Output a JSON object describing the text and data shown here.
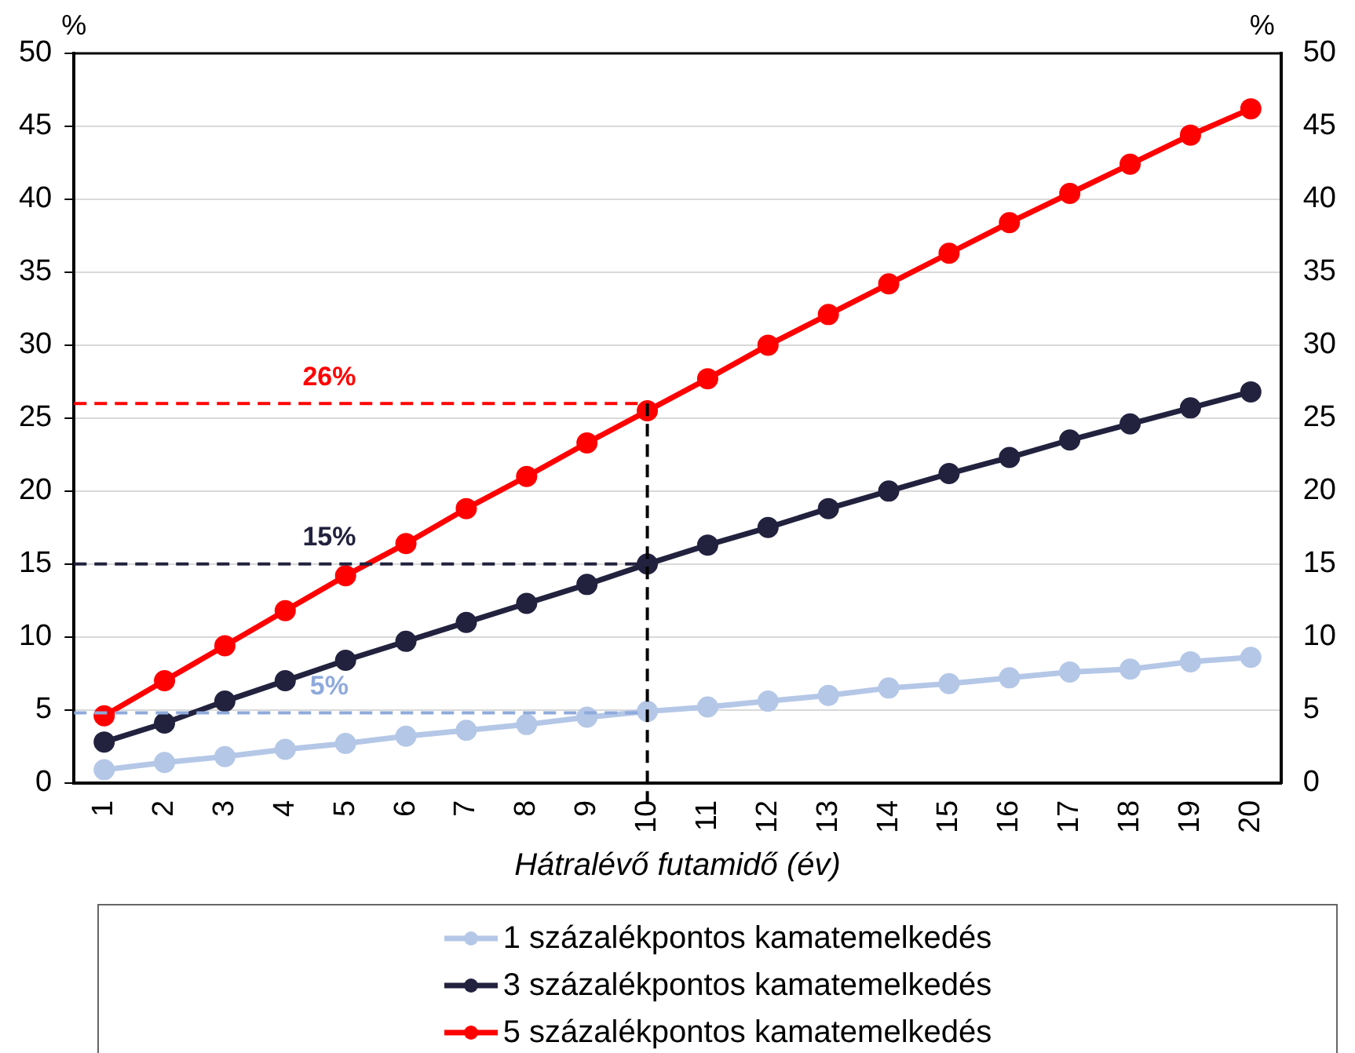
{
  "chart_data": {
    "type": "line",
    "xlabel": "Hátralévő futamidő (év)",
    "ylabel": "%",
    "y2label": "%",
    "categories": [
      "1",
      "2",
      "3",
      "4",
      "5",
      "6",
      "7",
      "8",
      "9",
      "10",
      "11",
      "12",
      "13",
      "14",
      "15",
      "16",
      "17",
      "18",
      "19",
      "20"
    ],
    "series": [
      {
        "name": "1 százalékpontos kamatemelkedés",
        "color": "#b4c7e7",
        "values": [
          0.9,
          1.4,
          1.8,
          2.3,
          2.7,
          3.2,
          3.6,
          4.0,
          4.5,
          4.9,
          5.2,
          5.6,
          6.0,
          6.5,
          6.8,
          7.2,
          7.6,
          7.8,
          8.3,
          8.6
        ]
      },
      {
        "name": "3 százalékpontos kamatemelkedés",
        "color": "#22223f",
        "values": [
          2.8,
          4.1,
          5.6,
          7.0,
          8.4,
          9.7,
          11.0,
          12.3,
          13.6,
          15.0,
          16.3,
          17.5,
          18.8,
          20.0,
          21.2,
          22.3,
          23.5,
          24.6,
          25.7,
          26.8
        ]
      },
      {
        "name": "5 százalékpontos kamatemelkedés",
        "color": "#ff0000",
        "values": [
          4.6,
          7.0,
          9.4,
          11.8,
          14.2,
          16.4,
          18.8,
          21.0,
          23.3,
          25.5,
          27.7,
          30.0,
          32.1,
          34.2,
          36.3,
          38.4,
          40.4,
          42.4,
          44.4,
          46.2
        ]
      }
    ],
    "ylim": [
      0,
      50
    ],
    "yticks": [
      0,
      5,
      10,
      15,
      20,
      25,
      30,
      35,
      40,
      45,
      50
    ],
    "y2lim": [
      0,
      50
    ],
    "y2ticks": [
      0,
      5,
      10,
      15,
      20,
      25,
      30,
      35,
      40,
      45,
      50
    ],
    "ref_lines": [
      {
        "axis": "y",
        "value": 26,
        "label": "26%",
        "color": "#ff0000",
        "line_style": "dashed"
      },
      {
        "axis": "y",
        "value": 15,
        "label": "15%",
        "color": "#22223f",
        "line_style": "dashed"
      },
      {
        "axis": "y",
        "value": 4.8,
        "label": "5%",
        "color": "#8faadc",
        "line_style": "dashed"
      },
      {
        "axis": "x",
        "value": "10",
        "color": "#000000",
        "line_style": "dashed"
      }
    ],
    "grid": "y",
    "legend": "bottom",
    "marker": "circle",
    "line_style": "solid"
  }
}
